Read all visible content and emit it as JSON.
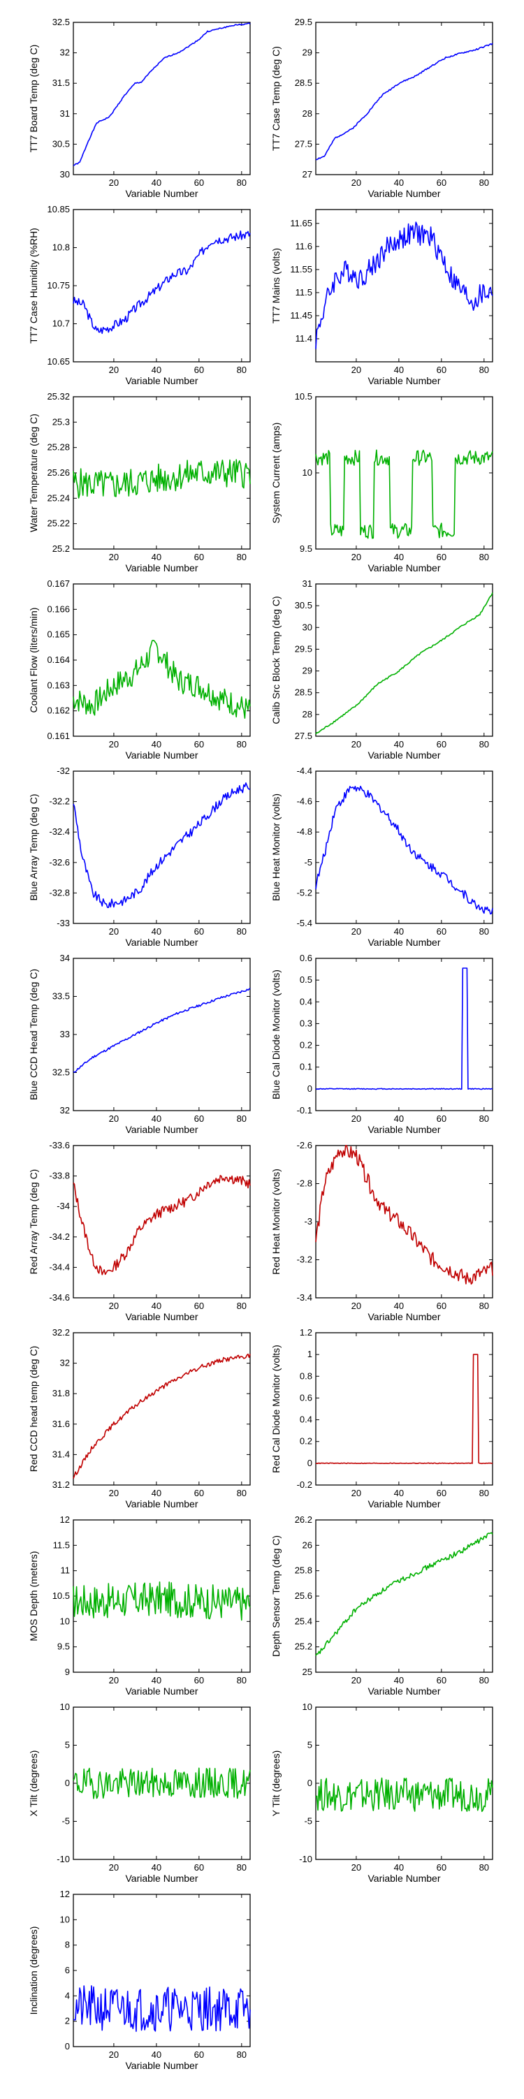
{
  "colors": {
    "blue": "#0000ff",
    "green": "#00b000",
    "red": "#c00000"
  },
  "chart_data": [
    {
      "type": "line",
      "color": "blue",
      "ylabel": "TT7 Board Temp (deg C)",
      "xlabel": "Variable Number",
      "xlim": [
        1,
        84
      ],
      "ylim": [
        30,
        32.5
      ],
      "xticks": [
        20,
        40,
        60,
        80
      ],
      "yticks": [
        30,
        30.5,
        31,
        31.5,
        32,
        32.5
      ],
      "key_points": [
        [
          1,
          30.15
        ],
        [
          4,
          30.2
        ],
        [
          8,
          30.55
        ],
        [
          12,
          30.85
        ],
        [
          18,
          30.95
        ],
        [
          25,
          31.3
        ],
        [
          30,
          31.5
        ],
        [
          33,
          31.52
        ],
        [
          38,
          31.72
        ],
        [
          44,
          31.92
        ],
        [
          50,
          32.0
        ],
        [
          54,
          32.08
        ],
        [
          60,
          32.22
        ],
        [
          64,
          32.35
        ],
        [
          70,
          32.4
        ],
        [
          76,
          32.45
        ],
        [
          84,
          32.48
        ]
      ],
      "noise": 0.01,
      "seed": 1
    },
    {
      "type": "line",
      "color": "blue",
      "ylabel": "TT7 Case Temp (deg C)",
      "xlabel": "Variable Number",
      "xlim": [
        1,
        84
      ],
      "ylim": [
        27,
        29.5
      ],
      "xticks": [
        20,
        40,
        60,
        80
      ],
      "yticks": [
        27,
        27.5,
        28,
        28.5,
        29,
        29.5
      ],
      "key_points": [
        [
          1,
          27.25
        ],
        [
          5,
          27.3
        ],
        [
          10,
          27.6
        ],
        [
          18,
          27.75
        ],
        [
          25,
          28.0
        ],
        [
          32,
          28.3
        ],
        [
          40,
          28.5
        ],
        [
          48,
          28.62
        ],
        [
          56,
          28.8
        ],
        [
          62,
          28.92
        ],
        [
          70,
          29.0
        ],
        [
          76,
          29.05
        ],
        [
          84,
          29.15
        ]
      ],
      "noise": 0.012,
      "seed": 2
    },
    {
      "type": "line",
      "color": "blue",
      "ylabel": "TT7 Case Humidity (%RH)",
      "xlabel": "Variable Number",
      "xlim": [
        1,
        84
      ],
      "ylim": [
        10.65,
        10.85
      ],
      "xticks": [
        20,
        40,
        60,
        80
      ],
      "yticks": [
        10.65,
        10.7,
        10.75,
        10.8,
        10.85
      ],
      "key_points": [
        [
          1,
          10.73
        ],
        [
          6,
          10.725
        ],
        [
          9,
          10.705
        ],
        [
          12,
          10.69
        ],
        [
          18,
          10.695
        ],
        [
          25,
          10.705
        ],
        [
          30,
          10.72
        ],
        [
          36,
          10.735
        ],
        [
          42,
          10.75
        ],
        [
          48,
          10.765
        ],
        [
          55,
          10.77
        ],
        [
          60,
          10.79
        ],
        [
          66,
          10.81
        ],
        [
          72,
          10.812
        ],
        [
          78,
          10.815
        ],
        [
          84,
          10.818
        ]
      ],
      "noise": 0.006,
      "seed": 3
    },
    {
      "type": "line",
      "color": "blue",
      "ylabel": "TT7 Mains  (volts)",
      "xlabel": "Variable Number",
      "xlim": [
        1,
        84
      ],
      "ylim": [
        11.35,
        11.68
      ],
      "xticks": [
        20,
        40,
        60,
        80
      ],
      "yticks": [
        11.4,
        11.45,
        11.5,
        11.55,
        11.6,
        11.65
      ],
      "key_points": [
        [
          1,
          11.4
        ],
        [
          5,
          11.47
        ],
        [
          10,
          11.53
        ],
        [
          16,
          11.55
        ],
        [
          22,
          11.53
        ],
        [
          28,
          11.56
        ],
        [
          35,
          11.6
        ],
        [
          42,
          11.62
        ],
        [
          48,
          11.63
        ],
        [
          55,
          11.62
        ],
        [
          60,
          11.58
        ],
        [
          65,
          11.53
        ],
        [
          70,
          11.5
        ],
        [
          75,
          11.48
        ],
        [
          80,
          11.5
        ],
        [
          84,
          11.5
        ]
      ],
      "noise": 0.025,
      "seed": 4
    },
    {
      "type": "line",
      "color": "green",
      "ylabel": "Water Temperature (deg C)",
      "xlabel": "Variable Number",
      "xlim": [
        1,
        84
      ],
      "ylim": [
        25.2,
        25.32
      ],
      "xticks": [
        20,
        40,
        60,
        80
      ],
      "yticks": [
        25.2,
        25.22,
        25.24,
        25.26,
        25.28,
        25.3,
        25.32
      ],
      "key_points": [
        [
          1,
          25.252
        ],
        [
          20,
          25.25
        ],
        [
          40,
          25.255
        ],
        [
          60,
          25.26
        ],
        [
          84,
          25.26
        ]
      ],
      "noise": 0.012,
      "seed": 5
    },
    {
      "type": "line",
      "color": "green",
      "ylabel": "System Current (amps)",
      "xlabel": "Variable Number",
      "xlim": [
        1,
        84
      ],
      "ylim": [
        9.5,
        10.5
      ],
      "xticks": [
        20,
        40,
        60,
        80
      ],
      "yticks": [
        9.5,
        10,
        10.5
      ],
      "key_points": [
        [
          1,
          10.1
        ],
        [
          84,
          10.1
        ]
      ],
      "noise": 0.05,
      "seed": 6,
      "step_low": 9.62,
      "step_segments": [
        [
          8,
          14
        ],
        [
          22,
          28
        ],
        [
          36,
          46
        ],
        [
          56,
          66
        ]
      ]
    },
    {
      "type": "line",
      "color": "green",
      "ylabel": "Coolant Flow (liters/min)",
      "xlabel": "Variable Number",
      "xlim": [
        1,
        84
      ],
      "ylim": [
        0.161,
        0.167
      ],
      "xticks": [
        20,
        40,
        60,
        80
      ],
      "yticks": [
        0.161,
        0.162,
        0.163,
        0.164,
        0.165,
        0.166,
        0.167
      ],
      "key_points": [
        [
          1,
          0.1625
        ],
        [
          10,
          0.1622
        ],
        [
          20,
          0.163
        ],
        [
          30,
          0.1635
        ],
        [
          40,
          0.1645
        ],
        [
          50,
          0.1632
        ],
        [
          60,
          0.163
        ],
        [
          70,
          0.1625
        ],
        [
          84,
          0.162
        ]
      ],
      "noise": 0.0005,
      "seed": 7
    },
    {
      "type": "line",
      "color": "green",
      "ylabel": "Calib Src Block Temp (deg C)",
      "xlabel": "Variable Number",
      "xlim": [
        1,
        84
      ],
      "ylim": [
        27.5,
        31
      ],
      "xticks": [
        20,
        40,
        60,
        80
      ],
      "yticks": [
        27.5,
        28,
        28.5,
        29,
        29.5,
        30,
        30.5,
        31
      ],
      "key_points": [
        [
          1,
          27.55
        ],
        [
          10,
          27.85
        ],
        [
          20,
          28.2
        ],
        [
          30,
          28.7
        ],
        [
          40,
          29.0
        ],
        [
          50,
          29.4
        ],
        [
          60,
          29.7
        ],
        [
          70,
          30.05
        ],
        [
          78,
          30.3
        ],
        [
          84,
          30.8
        ]
      ],
      "noise": 0.02,
      "seed": 8
    },
    {
      "type": "line",
      "color": "blue",
      "ylabel": "Blue Array Temp (deg C)",
      "xlabel": "Variable Number",
      "xlim": [
        1,
        84
      ],
      "ylim": [
        -33,
        -32
      ],
      "xticks": [
        20,
        40,
        60,
        80
      ],
      "yticks": [
        -33,
        -32.8,
        -32.6,
        -32.4,
        -32.2,
        -32
      ],
      "key_points": [
        [
          1,
          -32.2
        ],
        [
          5,
          -32.55
        ],
        [
          10,
          -32.8
        ],
        [
          16,
          -32.88
        ],
        [
          25,
          -32.85
        ],
        [
          32,
          -32.78
        ],
        [
          40,
          -32.62
        ],
        [
          50,
          -32.48
        ],
        [
          60,
          -32.35
        ],
        [
          70,
          -32.2
        ],
        [
          78,
          -32.12
        ],
        [
          84,
          -32.1
        ]
      ],
      "noise": 0.03,
      "seed": 9
    },
    {
      "type": "line",
      "color": "blue",
      "ylabel": "Blue Heat Monitor (volts)",
      "xlabel": "Variable Number",
      "xlim": [
        1,
        84
      ],
      "ylim": [
        -5.4,
        -4.4
      ],
      "xticks": [
        20,
        40,
        60,
        80
      ],
      "yticks": [
        -5.4,
        -5.2,
        -5,
        -4.8,
        -4.6,
        -4.4
      ],
      "key_points": [
        [
          1,
          -5.15
        ],
        [
          5,
          -4.95
        ],
        [
          10,
          -4.65
        ],
        [
          18,
          -4.5
        ],
        [
          25,
          -4.55
        ],
        [
          32,
          -4.65
        ],
        [
          38,
          -4.75
        ],
        [
          45,
          -4.9
        ],
        [
          52,
          -5.0
        ],
        [
          58,
          -5.05
        ],
        [
          64,
          -5.12
        ],
        [
          70,
          -5.2
        ],
        [
          76,
          -5.28
        ],
        [
          84,
          -5.33
        ]
      ],
      "noise": 0.03,
      "seed": 10
    },
    {
      "type": "line",
      "color": "blue",
      "ylabel": "Blue CCD Head Temp (deg C)",
      "xlabel": "Variable Number",
      "xlim": [
        1,
        84
      ],
      "ylim": [
        32,
        34
      ],
      "xticks": [
        20,
        40,
        60,
        80
      ],
      "yticks": [
        32,
        32.5,
        33,
        33.5,
        34
      ],
      "key_points": [
        [
          1,
          32.5
        ],
        [
          10,
          32.7
        ],
        [
          20,
          32.85
        ],
        [
          30,
          33.0
        ],
        [
          40,
          33.15
        ],
        [
          50,
          33.28
        ],
        [
          60,
          33.38
        ],
        [
          70,
          33.48
        ],
        [
          84,
          33.6
        ]
      ],
      "noise": 0.015,
      "seed": 11
    },
    {
      "type": "line",
      "color": "blue",
      "ylabel": "Blue Cal Diode Monitor (volts)",
      "xlabel": "Variable Number",
      "xlim": [
        1,
        84
      ],
      "ylim": [
        -0.1,
        0.6
      ],
      "xticks": [
        20,
        40,
        60,
        80
      ],
      "yticks": [
        -0.1,
        0,
        0.1,
        0.2,
        0.3,
        0.4,
        0.5,
        0.6
      ],
      "key_points": [
        [
          1,
          0
        ],
        [
          84,
          0
        ]
      ],
      "noise": 0.002,
      "seed": 12,
      "spike": {
        "start": 70,
        "end": 72,
        "value": 0.555
      }
    },
    {
      "type": "line",
      "color": "red",
      "ylabel": "Red Array Temp (deg C)",
      "xlabel": "Variable Number",
      "xlim": [
        1,
        84
      ],
      "ylim": [
        -34.6,
        -33.6
      ],
      "xticks": [
        20,
        40,
        60,
        80
      ],
      "yticks": [
        -34.6,
        -34.4,
        -34.2,
        -34,
        -33.8,
        -33.6
      ],
      "key_points": [
        [
          1,
          -33.85
        ],
        [
          5,
          -34.1
        ],
        [
          10,
          -34.35
        ],
        [
          15,
          -34.45
        ],
        [
          20,
          -34.4
        ],
        [
          26,
          -34.3
        ],
        [
          32,
          -34.15
        ],
        [
          40,
          -34.05
        ],
        [
          48,
          -34.0
        ],
        [
          56,
          -33.95
        ],
        [
          64,
          -33.85
        ],
        [
          72,
          -33.8
        ],
        [
          84,
          -33.85
        ]
      ],
      "noise": 0.035,
      "seed": 13
    },
    {
      "type": "line",
      "color": "red",
      "ylabel": "Red Heat Monitor (volts)",
      "xlabel": "Variable Number",
      "xlim": [
        1,
        84
      ],
      "ylim": [
        -3.4,
        -2.6
      ],
      "xticks": [
        20,
        40,
        60,
        80
      ],
      "yticks": [
        -3.4,
        -3.2,
        -3,
        -2.8,
        -2.6
      ],
      "key_points": [
        [
          1,
          -3.1
        ],
        [
          5,
          -2.8
        ],
        [
          12,
          -2.62
        ],
        [
          20,
          -2.65
        ],
        [
          28,
          -2.85
        ],
        [
          34,
          -2.95
        ],
        [
          40,
          -3.0
        ],
        [
          48,
          -3.1
        ],
        [
          56,
          -3.2
        ],
        [
          64,
          -3.25
        ],
        [
          72,
          -3.3
        ],
        [
          84,
          -3.25
        ]
      ],
      "noise": 0.04,
      "seed": 14
    },
    {
      "type": "line",
      "color": "red",
      "ylabel": "Red CCD head temp (deg C)",
      "xlabel": "Variable Number",
      "xlim": [
        1,
        84
      ],
      "ylim": [
        31.2,
        32.2
      ],
      "xticks": [
        20,
        40,
        60,
        80
      ],
      "yticks": [
        31.2,
        31.4,
        31.6,
        31.8,
        32,
        32.2
      ],
      "key_points": [
        [
          1,
          31.25
        ],
        [
          10,
          31.45
        ],
        [
          20,
          31.6
        ],
        [
          30,
          31.72
        ],
        [
          40,
          31.82
        ],
        [
          50,
          31.9
        ],
        [
          60,
          31.97
        ],
        [
          70,
          32.02
        ],
        [
          84,
          32.05
        ]
      ],
      "noise": 0.015,
      "seed": 15
    },
    {
      "type": "line",
      "color": "red",
      "ylabel": "Red Cal Diode Monitor (volts)",
      "xlabel": "Variable Number",
      "xlim": [
        1,
        84
      ],
      "ylim": [
        -0.2,
        1.2
      ],
      "xticks": [
        20,
        40,
        60,
        80
      ],
      "yticks": [
        -0.2,
        0,
        0.2,
        0.4,
        0.6,
        0.8,
        1,
        1.2
      ],
      "key_points": [
        [
          1,
          0
        ],
        [
          84,
          0
        ]
      ],
      "noise": 0.003,
      "seed": 16,
      "spike": {
        "start": 75,
        "end": 77,
        "value": 1.0
      }
    },
    {
      "type": "line",
      "color": "green",
      "ylabel": "MOS Depth  (meters)",
      "xlabel": "Variable Number",
      "xlim": [
        1,
        84
      ],
      "ylim": [
        9,
        12
      ],
      "xticks": [
        20,
        40,
        60,
        80
      ],
      "yticks": [
        9,
        9.5,
        10,
        10.5,
        11,
        11.5,
        12
      ],
      "key_points": [
        [
          1,
          10.4
        ],
        [
          20,
          10.4
        ],
        [
          40,
          10.45
        ],
        [
          60,
          10.4
        ],
        [
          84,
          10.35
        ]
      ],
      "noise": 0.35,
      "seed": 17
    },
    {
      "type": "line",
      "color": "green",
      "ylabel": "Depth Sensor Temp (deg C)",
      "xlabel": "Variable Number",
      "xlim": [
        1,
        84
      ],
      "ylim": [
        25,
        26.2
      ],
      "xticks": [
        20,
        40,
        60,
        80
      ],
      "yticks": [
        25,
        25.2,
        25.4,
        25.6,
        25.8,
        26,
        26.2
      ],
      "key_points": [
        [
          1,
          25.12
        ],
        [
          10,
          25.3
        ],
        [
          20,
          25.5
        ],
        [
          30,
          25.62
        ],
        [
          40,
          25.72
        ],
        [
          50,
          25.8
        ],
        [
          60,
          25.88
        ],
        [
          70,
          25.96
        ],
        [
          84,
          26.1
        ]
      ],
      "noise": 0.02,
      "seed": 18
    },
    {
      "type": "line",
      "color": "green",
      "ylabel": "X Tilt  (degrees)",
      "xlabel": "Variable Number",
      "xlim": [
        1,
        84
      ],
      "ylim": [
        -10,
        10
      ],
      "xticks": [
        20,
        40,
        60,
        80
      ],
      "yticks": [
        -10,
        -5,
        0,
        5,
        10
      ],
      "key_points": [
        [
          1,
          0
        ],
        [
          84,
          0
        ]
      ],
      "noise": 2.0,
      "seed": 19
    },
    {
      "type": "line",
      "color": "green",
      "ylabel": "Y Tilt  (degrees)",
      "xlabel": "Variable Number",
      "xlim": [
        1,
        84
      ],
      "ylim": [
        -10,
        10
      ],
      "xticks": [
        20,
        40,
        60,
        80
      ],
      "yticks": [
        -10,
        -5,
        0,
        5,
        10
      ],
      "key_points": [
        [
          1,
          -1.5
        ],
        [
          84,
          -1.5
        ]
      ],
      "noise": 2.2,
      "seed": 20
    },
    {
      "type": "line",
      "color": "blue",
      "ylabel": "Inclination  (degrees)",
      "xlabel": "Variable Number",
      "xlim": [
        1,
        84
      ],
      "ylim": [
        0,
        12
      ],
      "xticks": [
        20,
        40,
        60,
        80
      ],
      "yticks": [
        0,
        2,
        4,
        6,
        8,
        10,
        12
      ],
      "key_points": [
        [
          1,
          3
        ],
        [
          84,
          3
        ]
      ],
      "noise": 1.8,
      "seed": 21,
      "floor": 0.3
    }
  ]
}
